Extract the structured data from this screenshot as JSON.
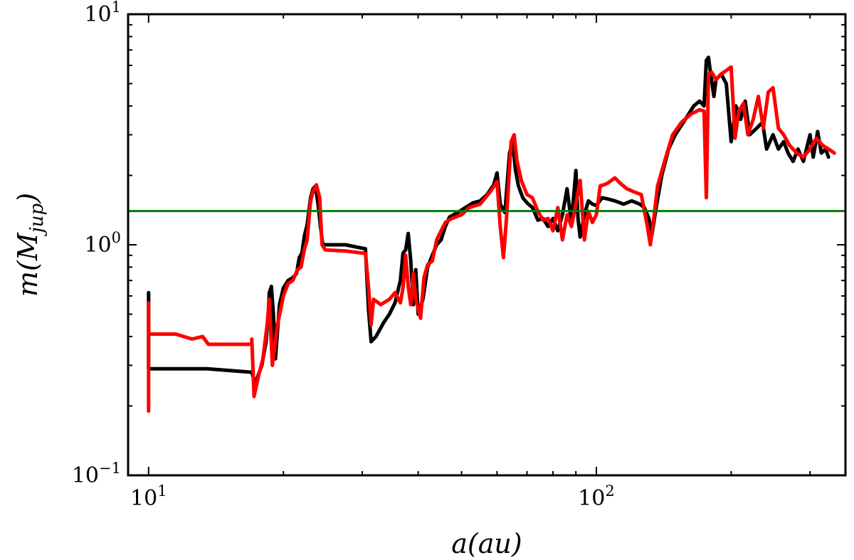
{
  "chart_data": {
    "type": "line",
    "xlabel": "a(au)",
    "ylabel_main": "m(M",
    "ylabel_sub": "jup",
    "ylabel_close": ")",
    "xscale": "log",
    "yscale": "log",
    "xlim": [
      9.0,
      360.0
    ],
    "ylim": [
      0.1,
      10.0
    ],
    "grid": false,
    "x_ticks": [
      {
        "value": 10,
        "base": "10",
        "exp": "1"
      },
      {
        "value": 100,
        "base": "10",
        "exp": "2"
      }
    ],
    "y_ticks": [
      {
        "value": 0.1,
        "base": "10",
        "exp": "−1"
      },
      {
        "value": 1,
        "base": "10",
        "exp": "0"
      },
      {
        "value": 10,
        "base": "10",
        "exp": "1"
      }
    ],
    "reference_line": {
      "y": 1.4,
      "color": "#008000"
    },
    "series": [
      {
        "color": "#000000",
        "points": [
          [
            10.0,
            0.62
          ],
          [
            10.0,
            0.29
          ],
          [
            13.5,
            0.29
          ],
          [
            17.0,
            0.28
          ],
          [
            17.3,
            0.25
          ],
          [
            17.9,
            0.3
          ],
          [
            18.3,
            0.38
          ],
          [
            18.5,
            0.5
          ],
          [
            18.6,
            0.62
          ],
          [
            18.8,
            0.66
          ],
          [
            19.0,
            0.5
          ],
          [
            19.2,
            0.32
          ],
          [
            19.6,
            0.55
          ],
          [
            20.0,
            0.65
          ],
          [
            20.5,
            0.7
          ],
          [
            21.0,
            0.72
          ],
          [
            21.4,
            0.75
          ],
          [
            21.7,
            0.88
          ],
          [
            22.0,
            0.92
          ],
          [
            22.3,
            1.1
          ],
          [
            22.6,
            1.22
          ],
          [
            23.0,
            1.6
          ],
          [
            23.3,
            1.75
          ],
          [
            23.6,
            1.8
          ],
          [
            23.9,
            1.5
          ],
          [
            24.2,
            1.2
          ],
          [
            24.5,
            1.0
          ],
          [
            27.5,
            1.0
          ],
          [
            30.5,
            0.96
          ],
          [
            31.0,
            0.52
          ],
          [
            31.4,
            0.38
          ],
          [
            32.2,
            0.4
          ],
          [
            33.5,
            0.46
          ],
          [
            34.5,
            0.5
          ],
          [
            35.5,
            0.56
          ],
          [
            36.5,
            0.7
          ],
          [
            37.0,
            0.92
          ],
          [
            37.5,
            0.95
          ],
          [
            38.0,
            1.12
          ],
          [
            38.5,
            0.85
          ],
          [
            39.0,
            0.55
          ],
          [
            39.5,
            0.78
          ],
          [
            40.0,
            0.5
          ],
          [
            41.0,
            0.58
          ],
          [
            42.0,
            0.8
          ],
          [
            43.0,
            0.9
          ],
          [
            44.0,
            1.0
          ],
          [
            45.0,
            1.05
          ],
          [
            46.0,
            1.2
          ],
          [
            47.0,
            1.32
          ],
          [
            49.0,
            1.38
          ],
          [
            51.0,
            1.45
          ],
          [
            53.0,
            1.52
          ],
          [
            55.0,
            1.55
          ],
          [
            57.0,
            1.65
          ],
          [
            59.0,
            1.82
          ],
          [
            60.0,
            2.05
          ],
          [
            61.0,
            1.5
          ],
          [
            62.5,
            1.38
          ],
          [
            64.0,
            2.5
          ],
          [
            65.0,
            2.8
          ],
          [
            66.0,
            2.1
          ],
          [
            67.0,
            1.8
          ],
          [
            68.5,
            1.6
          ],
          [
            70.0,
            1.52
          ],
          [
            72.0,
            1.45
          ],
          [
            74.0,
            1.28
          ],
          [
            76.0,
            1.3
          ],
          [
            78.0,
            1.2
          ],
          [
            80.0,
            1.3
          ],
          [
            82.0,
            1.15
          ],
          [
            84.0,
            1.35
          ],
          [
            86.0,
            1.75
          ],
          [
            88.0,
            1.25
          ],
          [
            90.0,
            2.1
          ],
          [
            91.0,
            1.3
          ],
          [
            92.0,
            1.08
          ],
          [
            94.0,
            1.35
          ],
          [
            96.0,
            1.55
          ],
          [
            98.0,
            1.5
          ],
          [
            100.0,
            1.48
          ],
          [
            103.0,
            1.6
          ],
          [
            106.0,
            1.58
          ],
          [
            110.0,
            1.55
          ],
          [
            115.0,
            1.5
          ],
          [
            120.0,
            1.55
          ],
          [
            125.0,
            1.5
          ],
          [
            128.0,
            1.45
          ],
          [
            131.0,
            1.3
          ],
          [
            133.0,
            1.1
          ],
          [
            136.0,
            1.45
          ],
          [
            140.0,
            2.0
          ],
          [
            145.0,
            2.6
          ],
          [
            150.0,
            3.0
          ],
          [
            158.0,
            3.5
          ],
          [
            165.0,
            4.0
          ],
          [
            170.0,
            4.2
          ],
          [
            174.0,
            4.0
          ],
          [
            176.0,
            6.3
          ],
          [
            178.0,
            6.5
          ],
          [
            180.0,
            5.5
          ],
          [
            183.0,
            4.4
          ],
          [
            185.0,
            5.2
          ],
          [
            190.0,
            5.5
          ],
          [
            195.0,
            5.0
          ],
          [
            200.0,
            2.8
          ],
          [
            205.0,
            4.0
          ],
          [
            210.0,
            3.5
          ],
          [
            215.0,
            4.2
          ],
          [
            220.0,
            3.0
          ],
          [
            228.0,
            3.2
          ],
          [
            235.0,
            3.4
          ],
          [
            240.0,
            2.6
          ],
          [
            248.0,
            3.0
          ],
          [
            255.0,
            2.6
          ],
          [
            262.0,
            2.8
          ],
          [
            268.0,
            2.5
          ],
          [
            275.0,
            2.3
          ],
          [
            282.0,
            2.6
          ],
          [
            290.0,
            2.3
          ],
          [
            300.0,
            3.0
          ],
          [
            305.0,
            2.4
          ],
          [
            312.0,
            3.1
          ],
          [
            318.0,
            2.5
          ],
          [
            325.0,
            2.6
          ],
          [
            330.0,
            2.4
          ]
        ]
      },
      {
        "color": "#ff0000",
        "points": [
          [
            10.0,
            0.56
          ],
          [
            10.0,
            0.19
          ],
          [
            10.0,
            0.41
          ],
          [
            11.5,
            0.41
          ],
          [
            12.5,
            0.39
          ],
          [
            13.2,
            0.4
          ],
          [
            13.6,
            0.37
          ],
          [
            16.0,
            0.37
          ],
          [
            17.0,
            0.37
          ],
          [
            17.0,
            0.39
          ],
          [
            17.2,
            0.22
          ],
          [
            17.6,
            0.27
          ],
          [
            18.0,
            0.32
          ],
          [
            18.4,
            0.45
          ],
          [
            18.6,
            0.58
          ],
          [
            18.9,
            0.3
          ],
          [
            19.4,
            0.45
          ],
          [
            20.0,
            0.6
          ],
          [
            20.5,
            0.68
          ],
          [
            21.0,
            0.7
          ],
          [
            21.5,
            0.78
          ],
          [
            21.9,
            0.8
          ],
          [
            22.3,
            0.96
          ],
          [
            22.6,
            1.05
          ],
          [
            23.0,
            1.55
          ],
          [
            23.3,
            1.7
          ],
          [
            23.7,
            1.82
          ],
          [
            24.1,
            1.6
          ],
          [
            24.4,
            1.0
          ],
          [
            24.8,
            0.95
          ],
          [
            27.5,
            0.94
          ],
          [
            30.0,
            0.92
          ],
          [
            30.5,
            0.92
          ],
          [
            31.0,
            0.65
          ],
          [
            31.4,
            0.45
          ],
          [
            31.8,
            0.58
          ],
          [
            33.0,
            0.55
          ],
          [
            34.5,
            0.58
          ],
          [
            35.5,
            0.62
          ],
          [
            36.5,
            0.56
          ],
          [
            37.0,
            0.65
          ],
          [
            37.5,
            0.9
          ],
          [
            38.0,
            0.66
          ],
          [
            38.5,
            0.55
          ],
          [
            39.0,
            0.75
          ],
          [
            39.5,
            0.58
          ],
          [
            40.5,
            0.48
          ],
          [
            41.2,
            0.72
          ],
          [
            42.0,
            0.82
          ],
          [
            43.0,
            0.85
          ],
          [
            44.0,
            1.05
          ],
          [
            45.0,
            1.15
          ],
          [
            46.0,
            1.25
          ],
          [
            47.5,
            1.3
          ],
          [
            50.0,
            1.35
          ],
          [
            52.0,
            1.45
          ],
          [
            55.0,
            1.5
          ],
          [
            58.0,
            1.7
          ],
          [
            60.0,
            1.88
          ],
          [
            61.0,
            1.2
          ],
          [
            62.0,
            0.88
          ],
          [
            63.0,
            1.3
          ],
          [
            64.5,
            2.8
          ],
          [
            65.5,
            3.0
          ],
          [
            66.5,
            2.3
          ],
          [
            68.0,
            1.9
          ],
          [
            70.0,
            1.65
          ],
          [
            72.0,
            1.6
          ],
          [
            74.0,
            1.4
          ],
          [
            76.0,
            1.28
          ],
          [
            78.0,
            1.3
          ],
          [
            80.0,
            1.15
          ],
          [
            82.0,
            1.45
          ],
          [
            84.0,
            1.05
          ],
          [
            86.0,
            1.35
          ],
          [
            88.0,
            1.2
          ],
          [
            90.0,
            1.5
          ],
          [
            92.0,
            1.9
          ],
          [
            94.0,
            1.05
          ],
          [
            96.0,
            1.4
          ],
          [
            98.0,
            1.25
          ],
          [
            100.0,
            1.35
          ],
          [
            102.0,
            1.8
          ],
          [
            104.0,
            1.82
          ],
          [
            106.0,
            1.85
          ],
          [
            108.0,
            1.9
          ],
          [
            110.0,
            1.95
          ],
          [
            113.0,
            1.85
          ],
          [
            117.0,
            1.75
          ],
          [
            121.0,
            1.7
          ],
          [
            126.0,
            1.65
          ],
          [
            130.0,
            1.2
          ],
          [
            132.0,
            1.0
          ],
          [
            134.0,
            1.25
          ],
          [
            137.0,
            1.8
          ],
          [
            142.0,
            2.3
          ],
          [
            148.0,
            3.0
          ],
          [
            155.0,
            3.4
          ],
          [
            163.0,
            3.7
          ],
          [
            170.0,
            3.85
          ],
          [
            174.0,
            3.8
          ],
          [
            176.0,
            1.6
          ],
          [
            178.0,
            5.5
          ],
          [
            181.0,
            5.6
          ],
          [
            185.0,
            5.2
          ],
          [
            190.0,
            5.5
          ],
          [
            200.0,
            5.9
          ],
          [
            204.0,
            2.9
          ],
          [
            208.0,
            3.8
          ],
          [
            213.0,
            4.1
          ],
          [
            218.0,
            3.0
          ],
          [
            224.0,
            3.5
          ],
          [
            230.0,
            4.4
          ],
          [
            236.0,
            3.2
          ],
          [
            242.0,
            4.6
          ],
          [
            248.0,
            4.8
          ],
          [
            255.0,
            3.2
          ],
          [
            262.0,
            3.0
          ],
          [
            270.0,
            2.7
          ],
          [
            280.0,
            2.5
          ],
          [
            290.0,
            2.4
          ],
          [
            300.0,
            2.6
          ],
          [
            310.0,
            2.9
          ],
          [
            320.0,
            2.7
          ],
          [
            330.0,
            2.6
          ],
          [
            340.0,
            2.5
          ]
        ]
      }
    ]
  }
}
